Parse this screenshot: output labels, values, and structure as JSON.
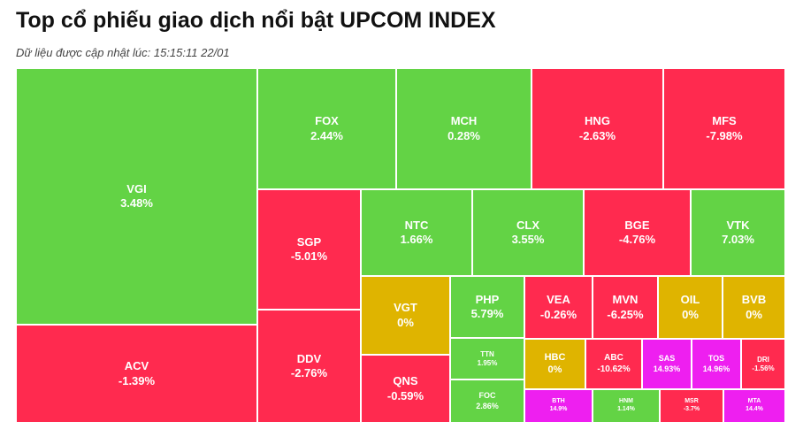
{
  "header": {
    "title": "Top cổ phiếu giao dịch nổi bật UPCOM INDEX",
    "subtitle": "Dữ liệu được cập nhật lúc: 15:15:11 22/01"
  },
  "colors": {
    "up": "#63d345",
    "down": "#ff2a4f",
    "unchanged": "#dfb400",
    "ceiling": "#ee1ff0",
    "floor": "#ff2a4f"
  },
  "chart_data": {
    "type": "treemap",
    "title": "Top cổ phiếu giao dịch nổi bật UPCOM INDEX",
    "items": [
      {
        "symbol": "VGI",
        "change": "3.48%",
        "status": "up"
      },
      {
        "symbol": "ACV",
        "change": "-1.39%",
        "status": "down"
      },
      {
        "symbol": "FOX",
        "change": "2.44%",
        "status": "up"
      },
      {
        "symbol": "MCH",
        "change": "0.28%",
        "status": "up"
      },
      {
        "symbol": "HNG",
        "change": "-2.63%",
        "status": "down"
      },
      {
        "symbol": "MFS",
        "change": "-7.98%",
        "status": "down"
      },
      {
        "symbol": "SGP",
        "change": "-5.01%",
        "status": "down"
      },
      {
        "symbol": "DDV",
        "change": "-2.76%",
        "status": "down"
      },
      {
        "symbol": "NTC",
        "change": "1.66%",
        "status": "up"
      },
      {
        "symbol": "CLX",
        "change": "3.55%",
        "status": "up"
      },
      {
        "symbol": "BGE",
        "change": "-4.76%",
        "status": "down"
      },
      {
        "symbol": "VTK",
        "change": "7.03%",
        "status": "up"
      },
      {
        "symbol": "VGT",
        "change": "0%",
        "status": "unchanged"
      },
      {
        "symbol": "QNS",
        "change": "-0.59%",
        "status": "down"
      },
      {
        "symbol": "PHP",
        "change": "5.79%",
        "status": "up"
      },
      {
        "symbol": "TTN",
        "change": "1.95%",
        "status": "up"
      },
      {
        "symbol": "FOC",
        "change": "2.86%",
        "status": "up"
      },
      {
        "symbol": "VEA",
        "change": "-0.26%",
        "status": "down"
      },
      {
        "symbol": "MVN",
        "change": "-6.25%",
        "status": "down"
      },
      {
        "symbol": "OIL",
        "change": "0%",
        "status": "unchanged"
      },
      {
        "symbol": "BVB",
        "change": "0%",
        "status": "unchanged"
      },
      {
        "symbol": "HBC",
        "change": "0%",
        "status": "unchanged"
      },
      {
        "symbol": "ABC",
        "change": "-10.62%",
        "status": "down"
      },
      {
        "symbol": "SAS",
        "change": "14.93%",
        "status": "ceiling"
      },
      {
        "symbol": "TOS",
        "change": "14.96%",
        "status": "ceiling"
      },
      {
        "symbol": "DRI",
        "change": "-1.56%",
        "status": "down"
      },
      {
        "symbol": "BTH",
        "change": "14.9%",
        "status": "ceiling"
      },
      {
        "symbol": "HNM",
        "change": "1.14%",
        "status": "up"
      },
      {
        "symbol": "MSR",
        "change": "-3.7%",
        "status": "down"
      },
      {
        "symbol": "MTA",
        "change": "14.4%",
        "status": "ceiling"
      }
    ]
  }
}
